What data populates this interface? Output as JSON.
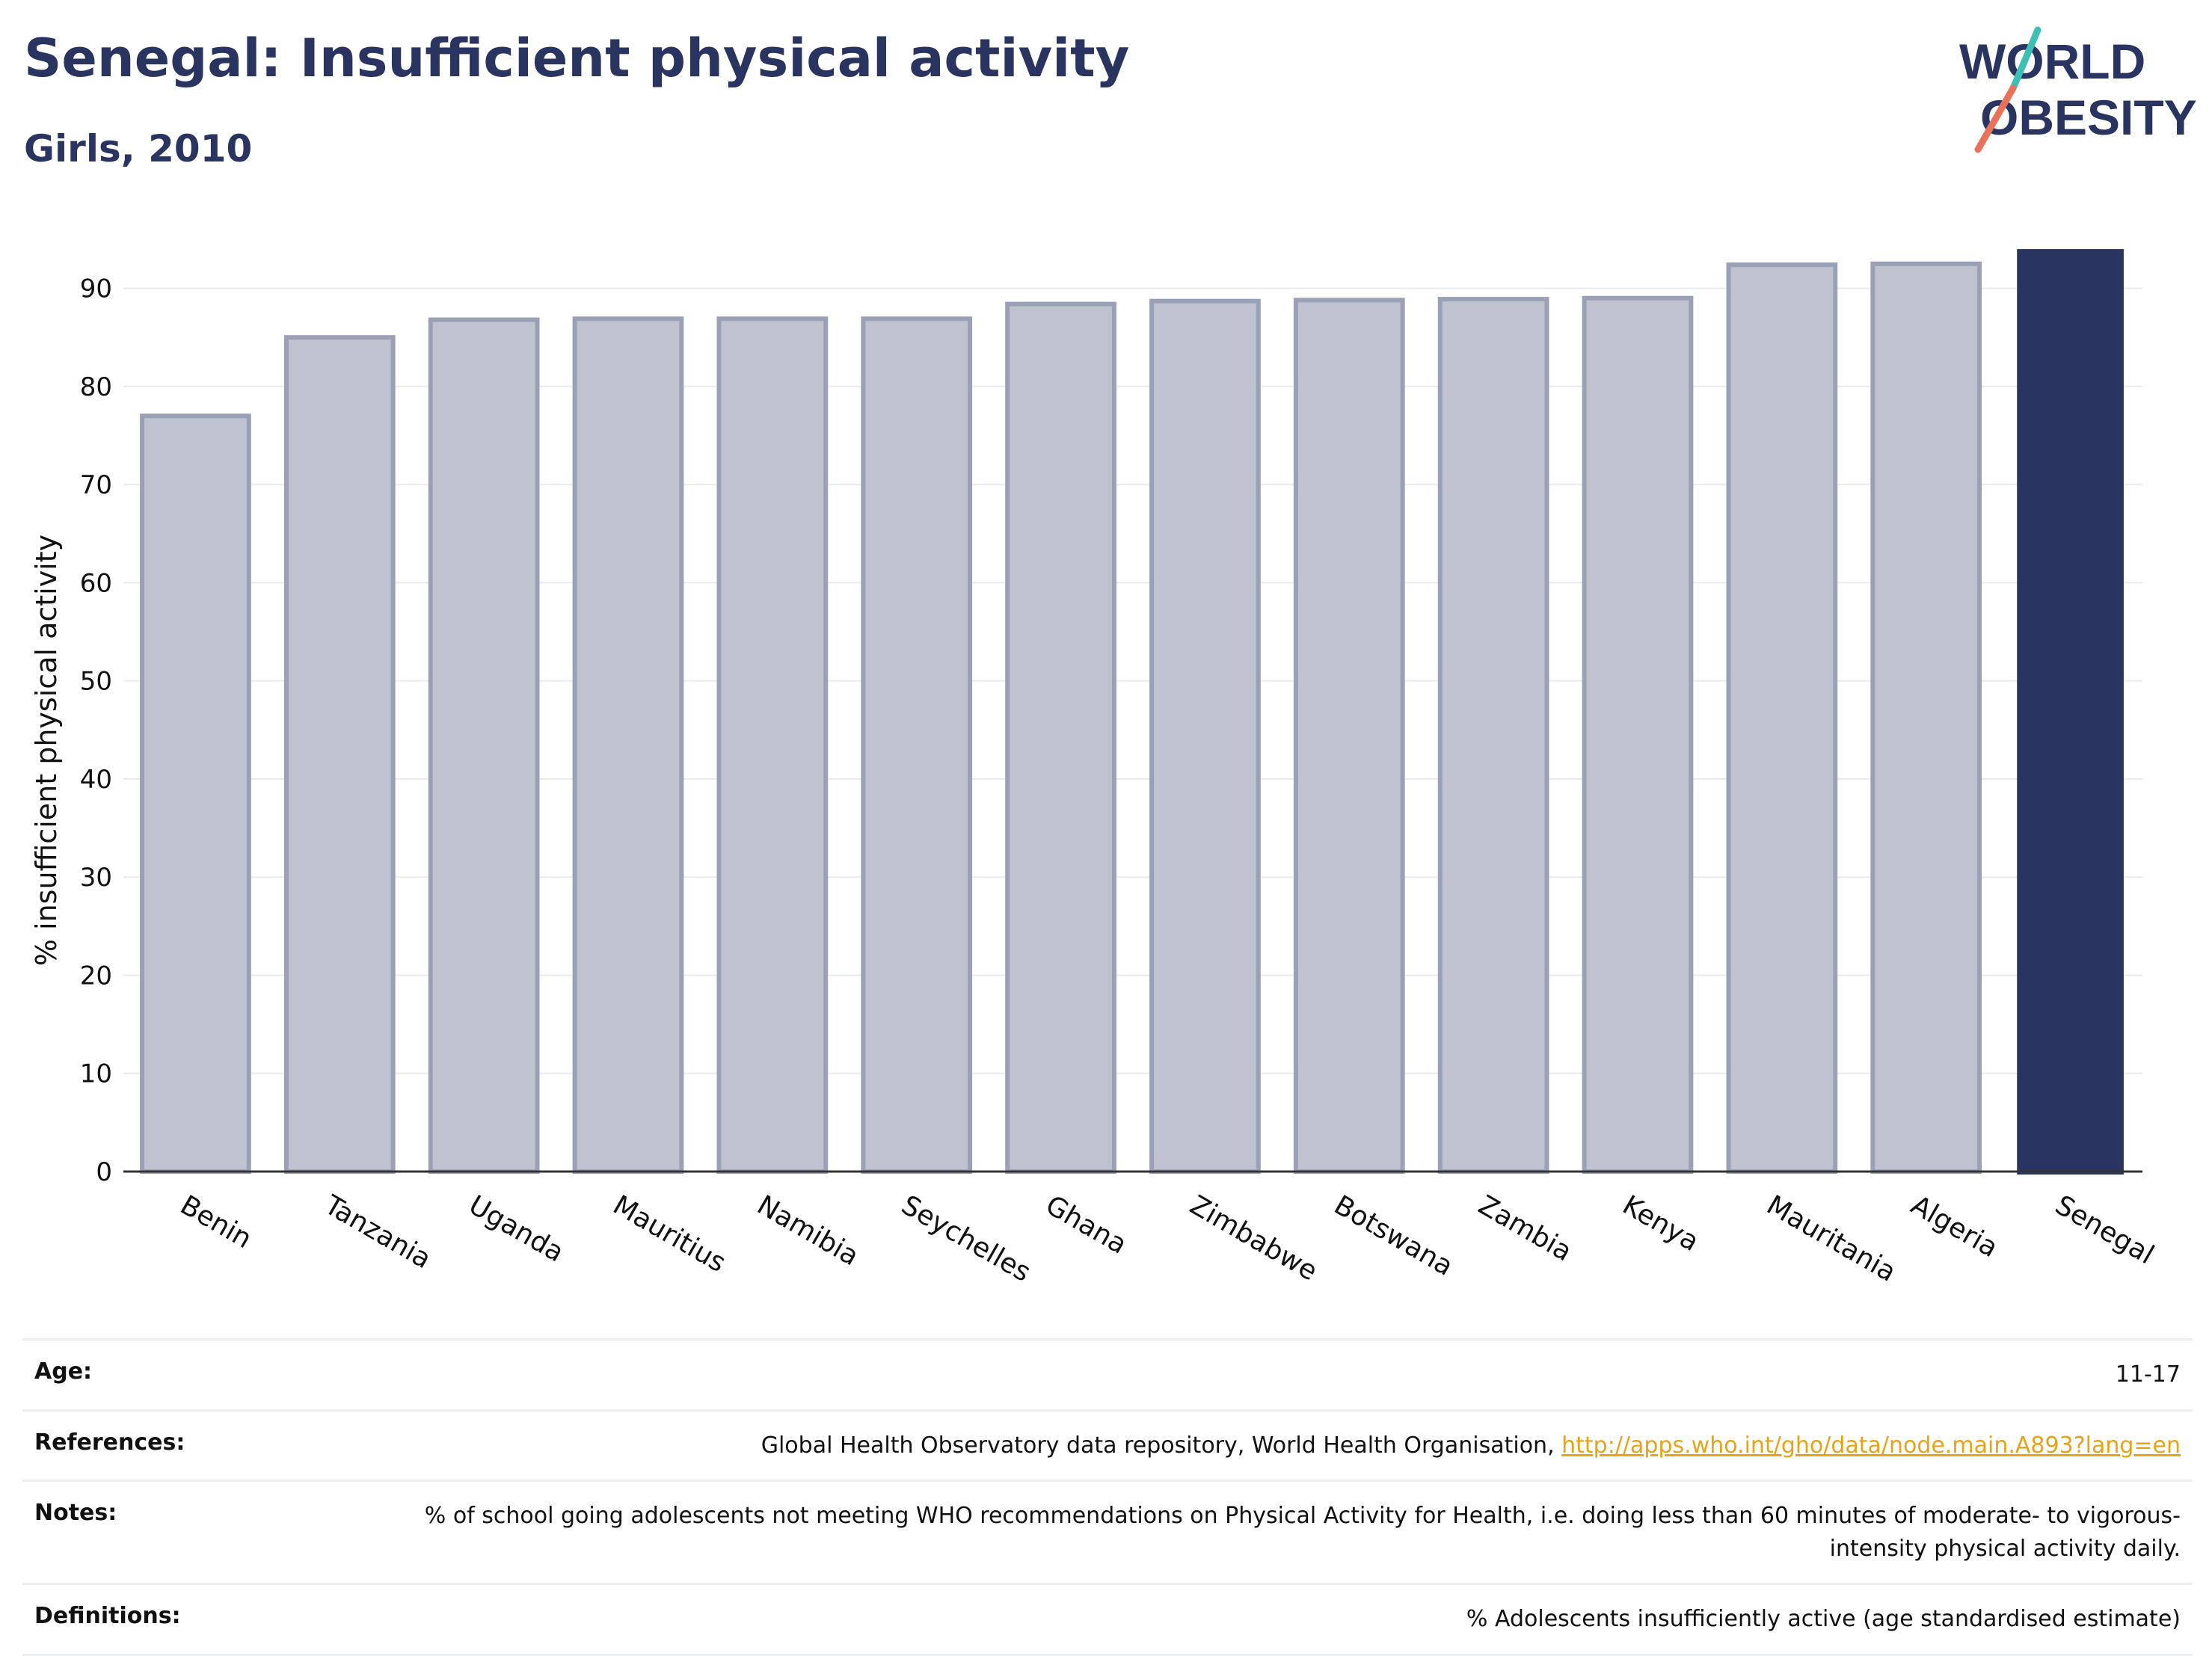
{
  "header": {
    "title": "Senegal: Insufficient physical activity",
    "subtitle": "Girls, 2010"
  },
  "logo": {
    "line1": "WORLD",
    "line2": "OBESITY",
    "colors": {
      "text": "#2a3460",
      "slash_teal": "#3ebfb5",
      "slash_coral": "#e8735a"
    }
  },
  "chart_data": {
    "type": "bar",
    "categories": [
      "Benin",
      "Tanzania",
      "Uganda",
      "Mauritius",
      "Namibia",
      "Seychelles",
      "Ghana",
      "Zimbabwe",
      "Botswana",
      "Zambia",
      "Kenya",
      "Mauritania",
      "Algeria",
      "Senegal"
    ],
    "values": [
      77.0,
      85.0,
      86.8,
      86.9,
      86.9,
      86.9,
      88.4,
      88.7,
      88.8,
      88.9,
      89.0,
      92.4,
      92.5,
      94.0
    ],
    "highlight": "Senegal",
    "ylabel": "% insufficient physical activity",
    "ylim": [
      0,
      95
    ],
    "yticks": [
      0,
      10,
      20,
      30,
      40,
      50,
      60,
      70,
      80,
      90
    ],
    "grid": true,
    "colors": {
      "bar": "#bfc3cf",
      "bar_edge": "#9aa0b6",
      "highlight": "#2a3460",
      "grid": "#e9ebf0"
    }
  },
  "footer": {
    "rows": [
      {
        "label": "Age:",
        "value": "11-17"
      },
      {
        "label": "References:",
        "value": "Global Health Observatory data repository, World Health Organisation, ",
        "link": "http://apps.who.int/gho/data/node.main.A893?lang=en"
      },
      {
        "label": "Notes:",
        "value": "% of school going adolescents not meeting WHO recommendations on Physical Activity for Health, i.e. doing less than 60 minutes of moderate- to vigorous-intensity physical activity daily."
      },
      {
        "label": "Definitions:",
        "value": "% Adolescents insufficiently active (age standardised estimate)"
      }
    ]
  }
}
